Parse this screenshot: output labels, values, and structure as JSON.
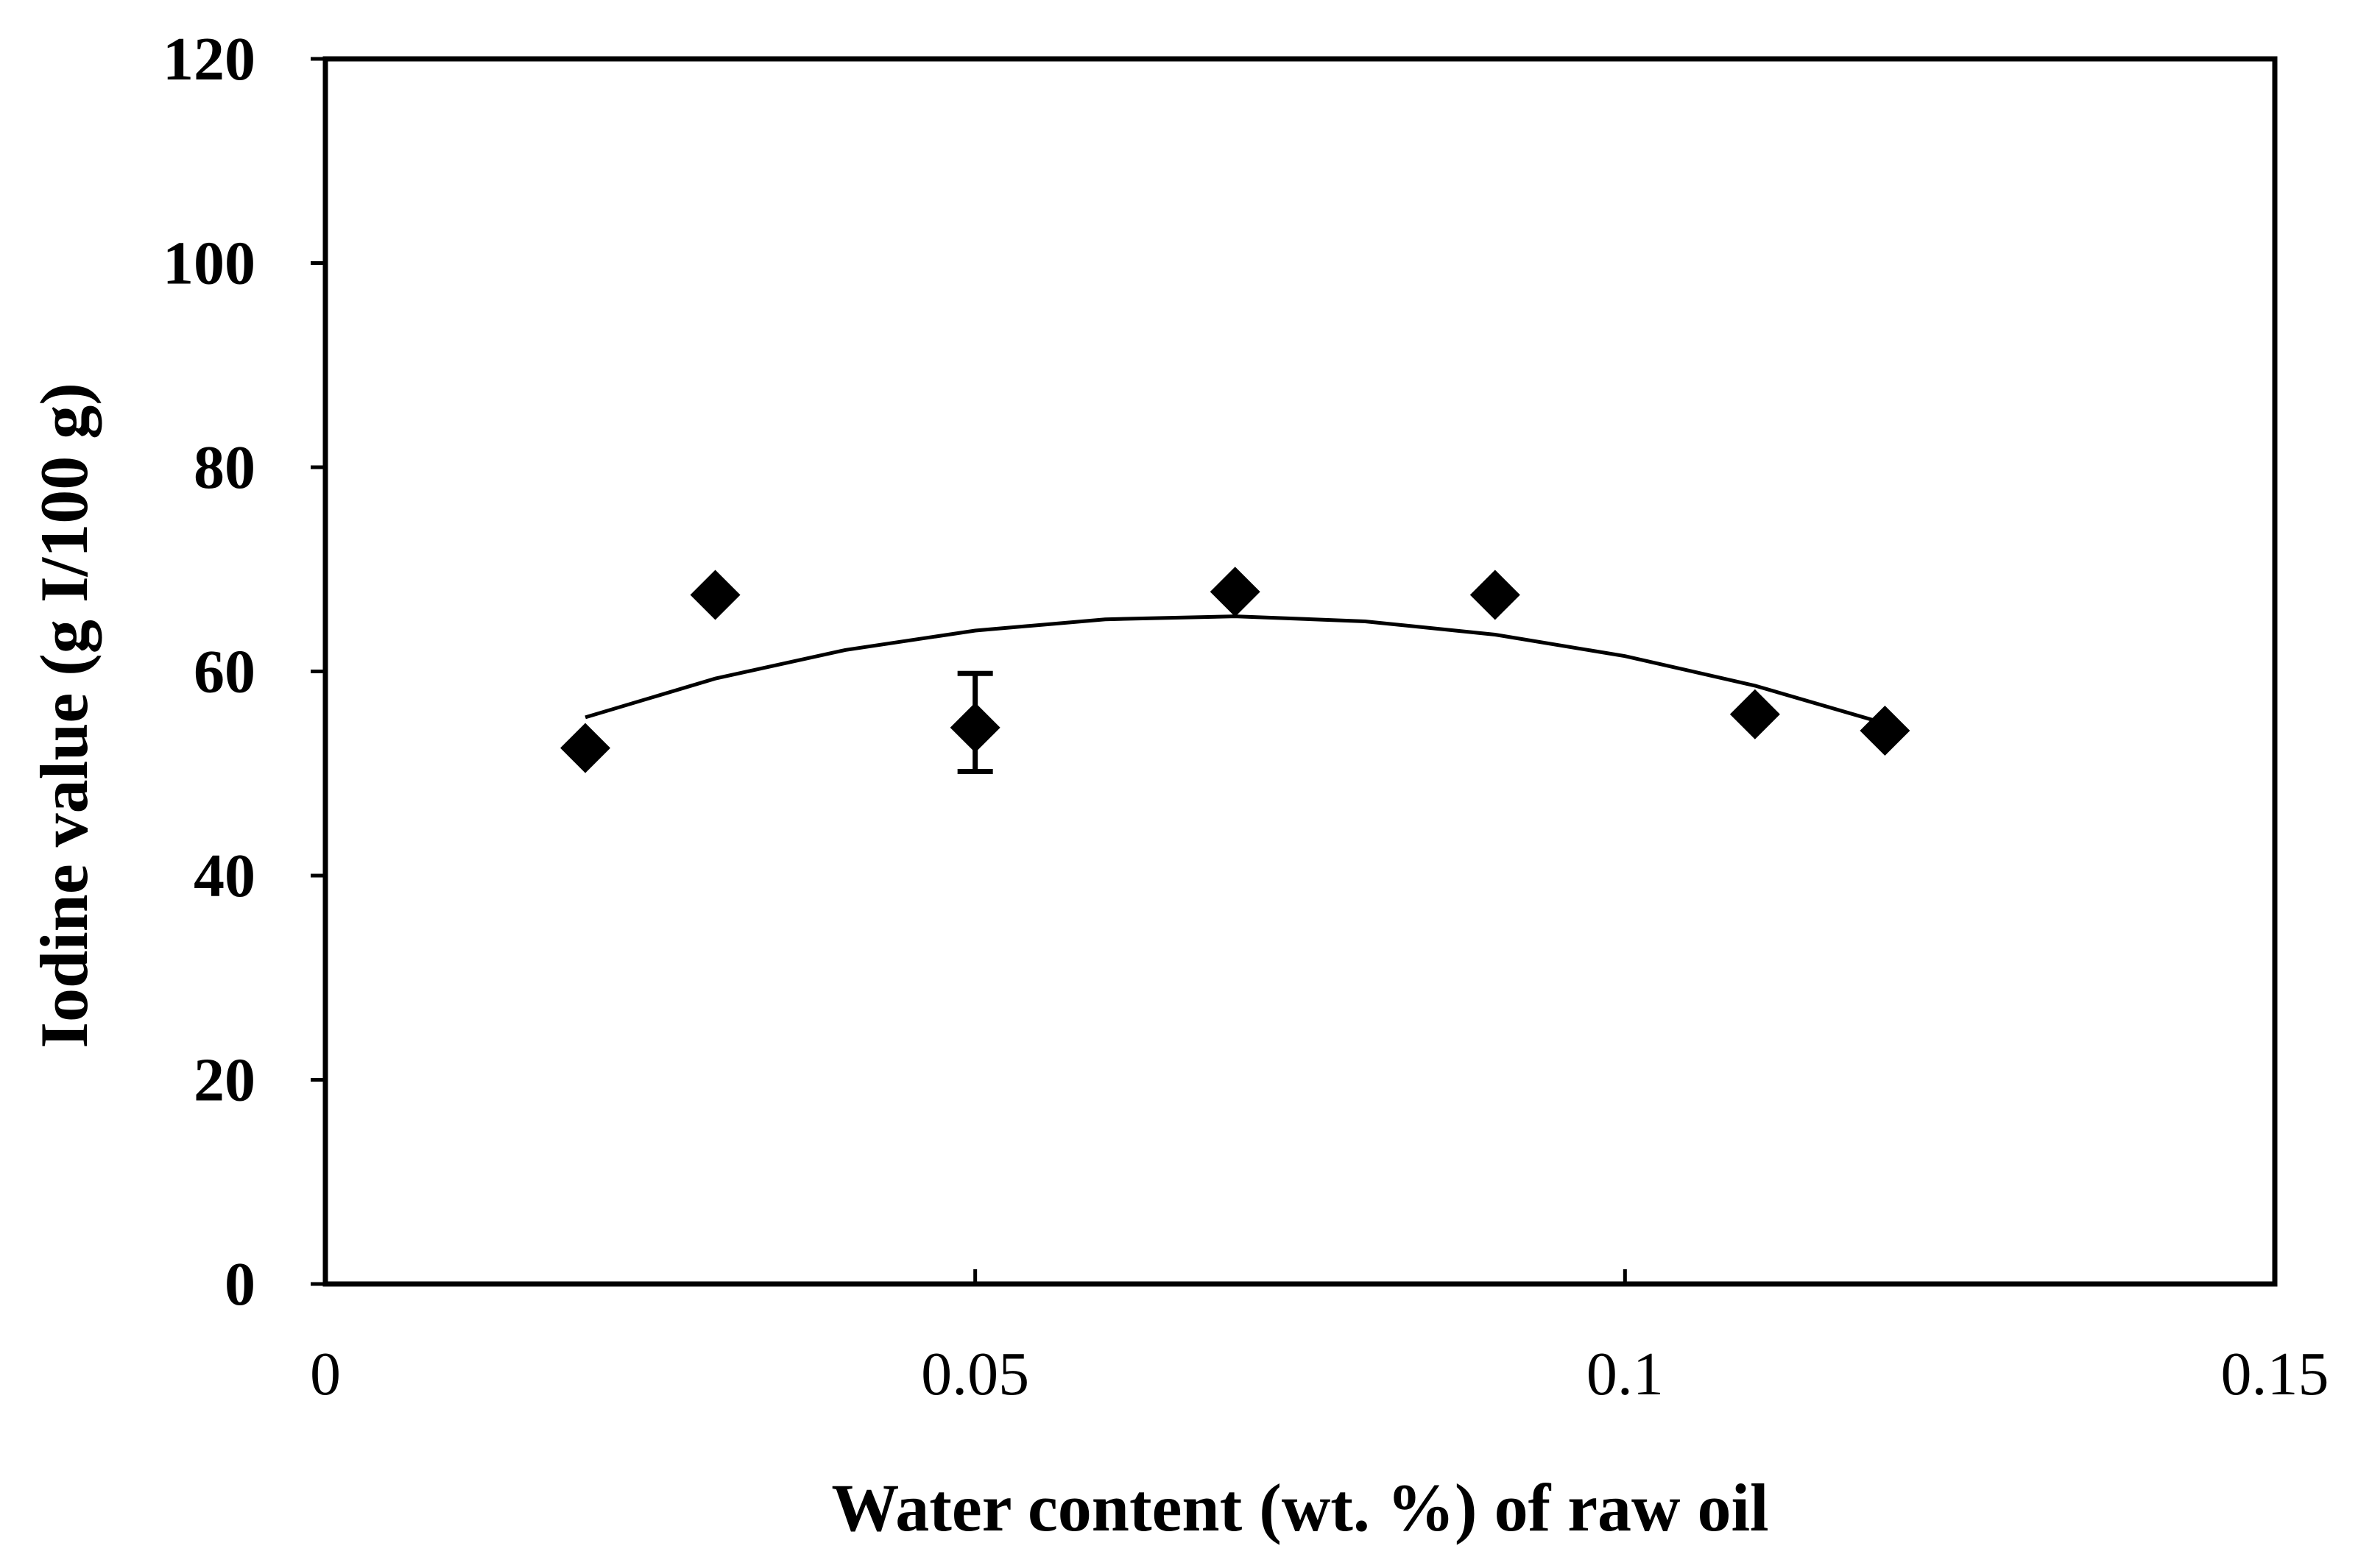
{
  "chart_data": {
    "type": "scatter",
    "title": "",
    "xlabel": "Water content (wt. %) of raw oil",
    "ylabel": "Iodine value  (g I/100 g)",
    "xlim": [
      0,
      0.15
    ],
    "ylim": [
      0,
      120
    ],
    "x_ticks": [
      0,
      0.05,
      0.1,
      0.15
    ],
    "x_tick_labels": [
      "0",
      "0.05",
      "0.1",
      "0.15"
    ],
    "y_ticks": [
      0,
      20,
      40,
      60,
      80,
      100,
      120
    ],
    "y_tick_labels": [
      "0",
      "20",
      "40",
      "60",
      "80",
      "100",
      "120"
    ],
    "grid": false,
    "legend": "none",
    "series": [
      {
        "name": "Iodine value",
        "marker": "diamond",
        "color": "#000000",
        "x": [
          0.02,
          0.03,
          0.05,
          0.07,
          0.09,
          0.11,
          0.12
        ],
        "y": [
          52.5,
          67.5,
          54.5,
          67.8,
          67.5,
          55.8,
          54.2
        ],
        "error_bars": [
          {
            "x": 0.05,
            "low": 50.2,
            "high": 59.8
          }
        ]
      }
    ],
    "trendline": {
      "type": "polynomial",
      "x_range": [
        0.02,
        0.12
      ],
      "points": [
        {
          "x": 0.02,
          "y": 55.5
        },
        {
          "x": 0.03,
          "y": 59.3
        },
        {
          "x": 0.04,
          "y": 62.1
        },
        {
          "x": 0.05,
          "y": 64.0
        },
        {
          "x": 0.06,
          "y": 65.1
        },
        {
          "x": 0.07,
          "y": 65.4
        },
        {
          "x": 0.08,
          "y": 64.9
        },
        {
          "x": 0.09,
          "y": 63.6
        },
        {
          "x": 0.1,
          "y": 61.5
        },
        {
          "x": 0.11,
          "y": 58.6
        },
        {
          "x": 0.12,
          "y": 54.9
        }
      ]
    }
  }
}
